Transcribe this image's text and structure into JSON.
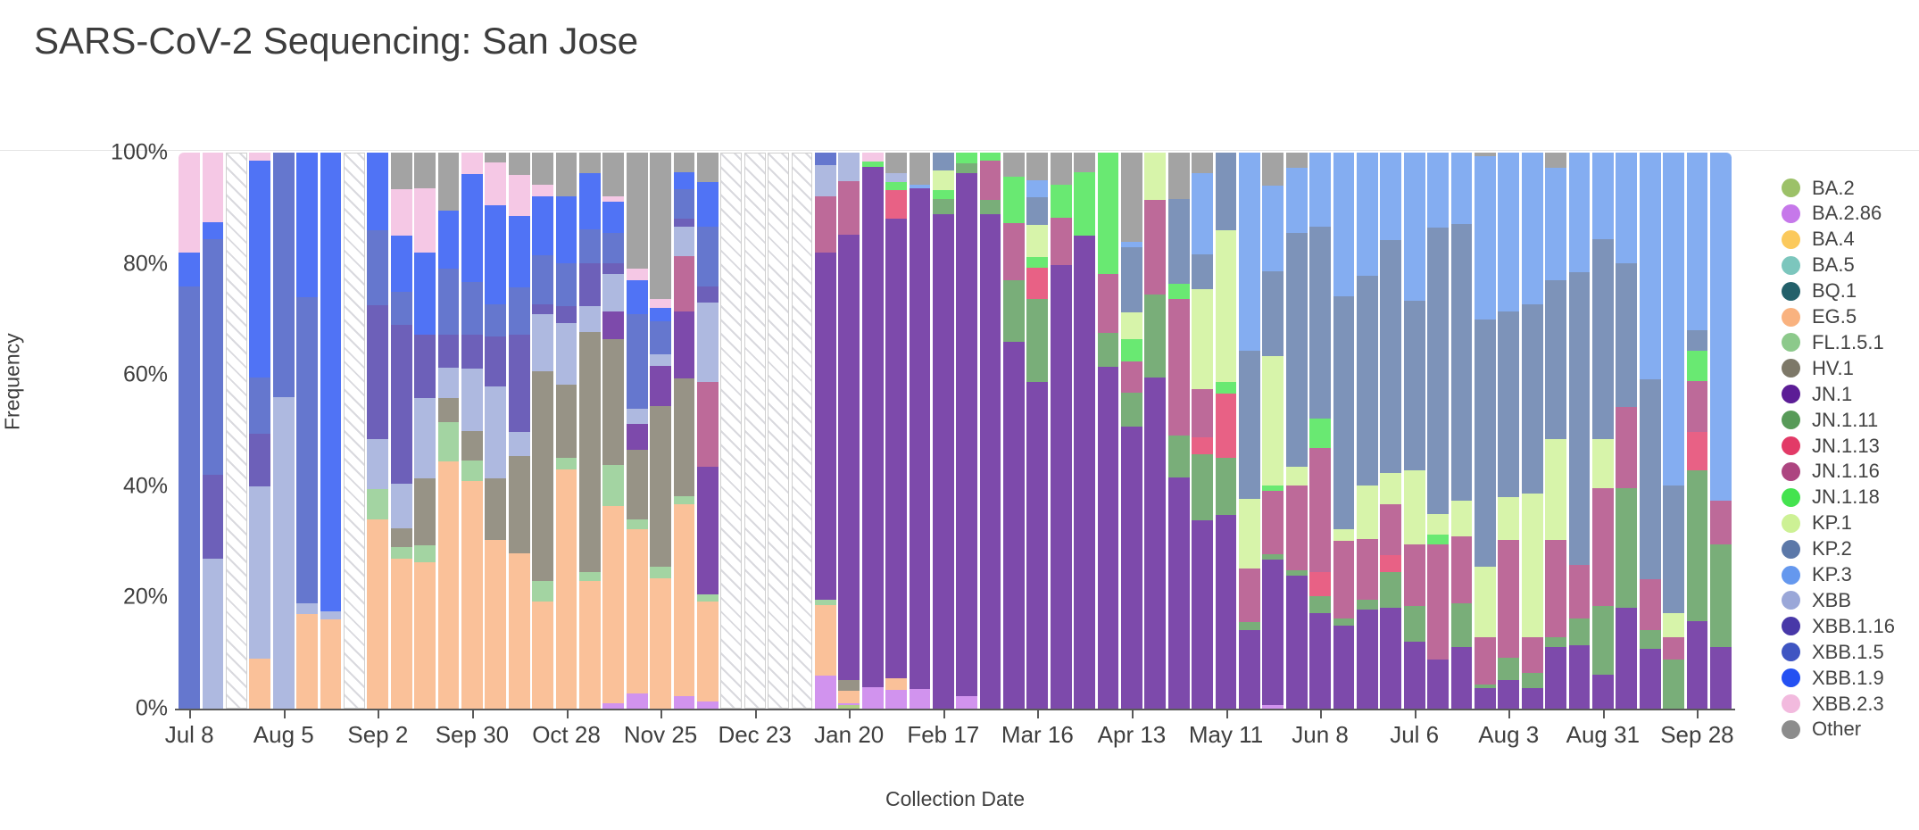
{
  "title": "SARS-CoV-2 Sequencing: San Jose",
  "axes": {
    "y_title": "Frequency",
    "x_title": "Collection Date",
    "y_ticks": [
      "0%",
      "20%",
      "40%",
      "60%",
      "80%",
      "100%"
    ],
    "x_tick_every_n_bars": 4,
    "x_tick_labels": [
      "Jul 8",
      "Aug 5",
      "Sep 2",
      "Sep 30",
      "Oct 28",
      "Nov 25",
      "Dec 23",
      "Jan 20",
      "Feb 17",
      "Mar 16",
      "Apr 13",
      "May 11",
      "Jun 8",
      "Jul 6",
      "Aug 3",
      "Aug 31",
      "Sep 28"
    ]
  },
  "legend": [
    {
      "label": "BA.2",
      "color": "#9cc168"
    },
    {
      "label": "BA.2.86",
      "color": "#c678ea"
    },
    {
      "label": "BA.4",
      "color": "#fbc95c"
    },
    {
      "label": "BA.5",
      "color": "#7cc6bd"
    },
    {
      "label": "BQ.1",
      "color": "#23606a"
    },
    {
      "label": "EG.5",
      "color": "#f9b27f"
    },
    {
      "label": "FL.1.5.1",
      "color": "#8cc98b"
    },
    {
      "label": "HV.1",
      "color": "#7d7868"
    },
    {
      "label": "JN.1",
      "color": "#5c1d96"
    },
    {
      "label": "JN.1.11",
      "color": "#579a58"
    },
    {
      "label": "JN.1.13",
      "color": "#e23a67"
    },
    {
      "label": "JN.1.16",
      "color": "#ad4580"
    },
    {
      "label": "JN.1.18",
      "color": "#44e34f"
    },
    {
      "label": "KP.1",
      "color": "#cdf195"
    },
    {
      "label": "KP.2",
      "color": "#5c78a8"
    },
    {
      "label": "KP.3",
      "color": "#6598ee"
    },
    {
      "label": "XBB",
      "color": "#9aa7d8"
    },
    {
      "label": "XBB.1.16",
      "color": "#4838a8"
    },
    {
      "label": "XBB.1.5",
      "color": "#3f55c2"
    },
    {
      "label": "XBB.1.9",
      "color": "#2450f2"
    },
    {
      "label": "XBB.2.3",
      "color": "#f2bade"
    },
    {
      "label": "Other",
      "color": "#8c8c8c"
    }
  ],
  "chart_data": {
    "type": "bar",
    "stacked": true,
    "stack_order_bottom_to_top": [
      "BA.2",
      "BA.2.86",
      "BA.4",
      "BA.5",
      "BQ.1",
      "EG.5",
      "FL.1.5.1",
      "HV.1",
      "JN.1",
      "JN.1.11",
      "JN.1.13",
      "JN.1.16",
      "JN.1.18",
      "KP.1",
      "KP.2",
      "KP.3",
      "XBB",
      "XBB.1.16",
      "XBB.1.5",
      "XBB.1.9",
      "XBB.2.3",
      "Other"
    ],
    "title": "SARS-CoV-2 Sequencing: San Jose",
    "xlabel": "Collection Date",
    "ylabel": "Frequency",
    "ylim": [
      0,
      100
    ],
    "y_unit": "percent",
    "no_data_weeks": [
      "2023-07-22",
      "2023-08-26",
      "2023-12-16",
      "2023-12-23",
      "2023-12-30",
      "2024-01-06"
    ],
    "bars": [
      {
        "date": "2023-07-08",
        "segments": {
          "XBB.1.5": 76,
          "XBB.1.9": 6,
          "XBB.2.3": 18
        }
      },
      {
        "date": "2023-07-15",
        "segments": {
          "XBB": 27,
          "XBB.1.16": 15,
          "XBB.1.5": 42.5,
          "XBB.1.9": 3,
          "XBB.2.3": 12.5
        }
      },
      {
        "date": "2023-07-22",
        "segments": null
      },
      {
        "date": "2023-07-29",
        "segments": {
          "EG.5": 9,
          "XBB": 31,
          "XBB.1.16": 9.5,
          "XBB.1.5": 10,
          "XBB.1.9": 39,
          "XBB.2.3": 1.5
        }
      },
      {
        "date": "2023-08-05",
        "segments": {
          "XBB": 56,
          "XBB.1.5": 44
        }
      },
      {
        "date": "2023-08-12",
        "segments": {
          "EG.5": 17,
          "XBB": 2,
          "XBB.1.5": 55,
          "XBB.1.9": 26
        }
      },
      {
        "date": "2023-08-19",
        "segments": {
          "EG.5": 16,
          "XBB": 1.5,
          "XBB.1.9": 82.5
        }
      },
      {
        "date": "2023-08-26",
        "segments": null
      },
      {
        "date": "2023-09-02",
        "segments": {
          "FL.1.5.1": 5.5,
          "EG.5": 34,
          "XBB": 9,
          "XBB.1.16": 24,
          "XBB.1.5": 13.5,
          "XBB.1.9": 14
        }
      },
      {
        "date": "2023-09-09",
        "segments": {
          "FL.1.5.1": 2,
          "EG.5": 27,
          "HV.1": 3.5,
          "XBB": 8,
          "XBB.1.16": 28.5,
          "XBB.1.5": 6,
          "XBB.1.9": 10,
          "XBB.2.3": 8.5,
          "Other": 6.5
        }
      },
      {
        "date": "2023-09-16",
        "segments": {
          "FL.1.5.1": 3,
          "EG.5": 26.3,
          "HV.1": 12.1,
          "XBB": 14.5,
          "XBB.1.16": 11.4,
          "XBB.1.9": 14.8,
          "XBB.2.3": 11.5,
          "Other": 6.4
        }
      },
      {
        "date": "2023-09-23",
        "segments": {
          "EG.5": 44.4,
          "FL.1.5.1": 7.1,
          "HV.1": 4.4,
          "XBB": 5.4,
          "XBB.1.16": 6,
          "XBB.1.5": 11.8,
          "XBB.1.9": 10.5,
          "Other": 10.4
        }
      },
      {
        "date": "2023-09-30",
        "segments": {
          "EG.5": 41,
          "FL.1.5.1": 3.7,
          "HV.1": 5.3,
          "XBB": 11.2,
          "XBB.1.16": 6,
          "XBB.1.5": 9.5,
          "XBB.1.9": 19.5,
          "XBB.2.3": 3.8
        }
      },
      {
        "date": "2023-10-07",
        "segments": {
          "EG.5": 30.3,
          "HV.1": 11.1,
          "XBB": 16.5,
          "XBB.1.16": 9.1,
          "XBB.1.5": 5.7,
          "XBB.1.9": 17.9,
          "XBB.2.3": 7.7,
          "Other": 1.7
        }
      },
      {
        "date": "2023-10-14",
        "segments": {
          "EG.5": 27.9,
          "HV.1": 17.6,
          "XBB": 4.3,
          "XBB.1.16": 17.5,
          "XBB.1.5": 8.5,
          "XBB.1.9": 12.8,
          "XBB.2.3": 7.4,
          "Other": 4
        }
      },
      {
        "date": "2023-10-21",
        "segments": {
          "EG.5": 19.2,
          "FL.1.5.1": 3.7,
          "HV.1": 37.7,
          "XBB": 10.4,
          "XBB.1.16": 1.7,
          "XBB.1.5": 8.8,
          "XBB.1.9": 10.7,
          "XBB.2.3": 2.1,
          "Other": 5.7
        }
      },
      {
        "date": "2023-10-28",
        "segments": {
          "EG.5": 43.1,
          "FL.1.5.1": 2,
          "HV.1": 13.1,
          "XBB": 11.2,
          "XBB.1.16": 3,
          "XBB.1.5": 7.7,
          "XBB.1.9": 12.1,
          "Other": 7.8
        }
      },
      {
        "date": "2023-11-04",
        "segments": {
          "EG.5": 22.9,
          "FL.1.5.1": 1.7,
          "HV.1": 43.1,
          "XBB": 4.7,
          "XBB.1.16": 7.7,
          "XBB.1.5": 6.1,
          "XBB.1.9": 10.1,
          "Other": 3.7
        }
      },
      {
        "date": "2023-11-11",
        "segments": {
          "BA.2.86": 1,
          "EG.5": 35.5,
          "FL.1.5.1": 7.4,
          "HV.1": 22.5,
          "JN.1": 5,
          "XBB": 6.7,
          "XBB.1.16": 2,
          "XBB.1.5": 5.4,
          "XBB.1.9": 5.7,
          "XBB.2.3": 1,
          "Other": 7.8
        }
      },
      {
        "date": "2023-11-18",
        "segments": {
          "BA.2.86": 2.7,
          "EG.5": 29.6,
          "FL.1.5.1": 1.7,
          "HV.1": 12.5,
          "JN.1": 4.7,
          "XBB": 2.7,
          "XBB.1.5": 17.1,
          "XBB.1.9": 6.1,
          "XBB.2.3": 2,
          "Other": 20.9
        }
      },
      {
        "date": "2023-11-25",
        "segments": {
          "FL.1.5.1": 2,
          "EG.5": 23.5,
          "HV.1": 28.9,
          "JN.1": 7.3,
          "XBB": 2,
          "XBB.1.5": 6,
          "XBB.1.9": 2.3,
          "XBB.2.3": 1.7,
          "Other": 26.3
        }
      },
      {
        "date": "2023-12-02",
        "segments": {
          "BA.2.86": 2.3,
          "EG.5": 34.5,
          "FL.1.5.1": 1.4,
          "HV.1": 21.2,
          "JN.1": 12,
          "JN.1.16": 10,
          "XBB": 5.3,
          "XBB.1.16": 1.4,
          "XBB.1.5": 5.3,
          "XBB.1.9": 3,
          "Other": 3.6
        }
      },
      {
        "date": "2023-12-09",
        "segments": {
          "BA.2.86": 1.3,
          "EG.5": 17.9,
          "FL.1.5.1": 1.3,
          "JN.1": 23,
          "JN.1.16": 15.2,
          "XBB": 14.3,
          "XBB.1.16": 3,
          "XBB.1.5": 10.7,
          "XBB.1.9": 8,
          "Other": 5.3
        }
      },
      {
        "date": "2023-12-16",
        "segments": null
      },
      {
        "date": "2023-12-23",
        "segments": null
      },
      {
        "date": "2023-12-30",
        "segments": null
      },
      {
        "date": "2024-01-06",
        "segments": null
      },
      {
        "date": "2024-01-13",
        "segments": {
          "BA.2.86": 6,
          "EG.5": 12.6,
          "FL.1.5.1": 1,
          "JN.1": 62.4,
          "JN.1.16": 10.2,
          "XBB": 5.6,
          "XBB.1.5": 2.2
        }
      },
      {
        "date": "2024-01-20",
        "segments": {
          "BA.2": 0.6,
          "BA.2.86": 0.4,
          "EG.5": 2.2,
          "HV.1": 1.9,
          "JN.1": 80.1,
          "JN.1.16": 9.6,
          "XBB": 5.2
        }
      },
      {
        "date": "2024-01-27",
        "segments": {
          "BA.2.86": 3.9,
          "JN.1": 93.5,
          "JN.1.18": 1,
          "XBB.2.3": 1.6
        }
      },
      {
        "date": "2024-02-03",
        "segments": {
          "BA.2.86": 3.3,
          "EG.5": 2.2,
          "JN.1": 82.7,
          "JN.1.13": 5.1,
          "JN.1.18": 1.4,
          "XBB": 1.6,
          "Other": 3.7
        }
      },
      {
        "date": "2024-02-10",
        "segments": {
          "BA.2.86": 3.6,
          "JN.1": 90,
          "KP.3": 0.7,
          "Other": 5.7
        }
      },
      {
        "date": "2024-02-17",
        "segments": {
          "JN.1": 89,
          "JN.1.11": 2.7,
          "JN.1.18": 1.5,
          "KP.1": 3.6,
          "KP.2": 3.2
        }
      },
      {
        "date": "2024-02-24",
        "segments": {
          "BA.2.86": 2.3,
          "JN.1": 94,
          "JN.1.11": 1.7,
          "JN.1.18": 2
        }
      },
      {
        "date": "2024-03-02",
        "segments": {
          "JN.1": 89,
          "JN.1.11": 2.5,
          "JN.1.16": 7,
          "JN.1.18": 1.5
        }
      },
      {
        "date": "2024-03-09",
        "segments": {
          "JN.1": 66,
          "JN.1.11": 11,
          "JN.1.16": 10.3,
          "JN.1.18": 8.4,
          "Other": 4.3
        }
      },
      {
        "date": "2024-03-16",
        "segments": {
          "JN.1": 58.7,
          "JN.1.11": 15,
          "JN.1.13": 5.6,
          "JN.1.18": 2,
          "KP.1": 5.7,
          "KP.2": 5,
          "KP.3": 3,
          "Other": 5
        }
      },
      {
        "date": "2024-03-23",
        "segments": {
          "JN.1": 79.7,
          "JN.1.16": 8.6,
          "JN.1.18": 6,
          "Other": 5.7
        }
      },
      {
        "date": "2024-03-30",
        "segments": {
          "JN.1": 85,
          "JN.1.18": 11.4,
          "Other": 3.6
        }
      },
      {
        "date": "2024-04-06",
        "segments": {
          "JN.1": 61.5,
          "JN.1.11": 6,
          "JN.1.16": 10.7,
          "JN.1.18": 21.8
        }
      },
      {
        "date": "2024-04-13",
        "segments": {
          "JN.1": 50.8,
          "JN.1.11": 6,
          "JN.1.16": 5.7,
          "JN.1.18": 4,
          "KP.1": 4.7,
          "KP.2": 11.8,
          "KP.3": 1,
          "Other": 16
        }
      },
      {
        "date": "2024-04-20",
        "segments": {
          "JN.1": 59.5,
          "JN.1.11": 15,
          "JN.1.16": 17,
          "KP.1": 8.5
        }
      },
      {
        "date": "2024-04-27",
        "segments": {
          "JN.1": 41.5,
          "JN.1.11": 7.6,
          "JN.1.16": 24.6,
          "JN.1.18": 2.7,
          "KP.2": 15.3,
          "Other": 8.3
        }
      },
      {
        "date": "2024-05-04",
        "segments": {
          "JN.1": 33.9,
          "JN.1.11": 11.9,
          "JN.1.13": 3,
          "JN.1.16": 8.7,
          "KP.1": 17.9,
          "KP.2": 6.3,
          "KP.3": 14.6,
          "Other": 3.7
        }
      },
      {
        "date": "2024-05-11",
        "segments": {
          "JN.1": 34.8,
          "JN.1.11": 10.3,
          "JN.1.13": 11.6,
          "JN.1.18": 2,
          "KP.1": 27.3,
          "KP.2": 14
        }
      },
      {
        "date": "2024-05-18",
        "segments": {
          "JN.1": 14.2,
          "JN.1.11": 1.4,
          "JN.1.16": 9.6,
          "KP.1": 12.6,
          "KP.2": 26.6,
          "KP.3": 35.6
        }
      },
      {
        "date": "2024-05-25",
        "segments": {
          "BA.2.86": 0.6,
          "JN.1": 26.2,
          "JN.1.11": 1,
          "JN.1.16": 11.3,
          "JN.1.18": 1,
          "KP.1": 23.3,
          "KP.2": 15.3,
          "KP.3": 15.3,
          "Other": 6
        }
      },
      {
        "date": "2024-06-01",
        "segments": {
          "JN.1": 23.9,
          "JN.1.11": 1,
          "JN.1.16": 15.2,
          "KP.1": 3.4,
          "KP.2": 42.1,
          "KP.3": 11.7,
          "Other": 2.7
        }
      },
      {
        "date": "2024-06-08",
        "segments": {
          "JN.1": 17.2,
          "JN.1.11": 3,
          "JN.1.13": 4.3,
          "JN.1.16": 22.3,
          "JN.1.18": 5.4,
          "KP.2": 34.5,
          "KP.3": 13.3
        }
      },
      {
        "date": "2024-06-15",
        "segments": {
          "JN.1": 14.9,
          "JN.1.11": 1.3,
          "JN.1.16": 14,
          "KP.1": 2,
          "KP.2": 41.9,
          "KP.3": 25.9
        }
      },
      {
        "date": "2024-06-22",
        "segments": {
          "JN.1": 17.9,
          "JN.1.11": 1.7,
          "JN.1.16": 11,
          "KP.1": 9.6,
          "KP.2": 37.7,
          "KP.3": 22.2
        }
      },
      {
        "date": "2024-06-29",
        "segments": {
          "JN.1": 18.2,
          "JN.1.11": 6.4,
          "JN.1.13": 3,
          "JN.1.16": 9.1,
          "KP.1": 5.7,
          "KP.2": 41.8,
          "KP.3": 15.8
        }
      },
      {
        "date": "2024-07-06",
        "segments": {
          "JN.1": 12.1,
          "JN.1.11": 6.4,
          "JN.1.16": 11.1,
          "KP.1": 13.2,
          "KP.2": 30.6,
          "KP.3": 26.6
        }
      },
      {
        "date": "2024-07-13",
        "segments": {
          "JN.1": 8.8,
          "JN.1.16": 20.8,
          "JN.1.18": 1.7,
          "KP.1": 3.7,
          "KP.2": 51.5,
          "KP.3": 13.5
        }
      },
      {
        "date": "2024-07-20",
        "segments": {
          "JN.1": 11.1,
          "JN.1.11": 7.8,
          "JN.1.16": 12.1,
          "KP.1": 6.4,
          "KP.2": 49.8,
          "KP.3": 12.8
        }
      },
      {
        "date": "2024-07-27",
        "segments": {
          "JN.1": 3.7,
          "JN.1.11": 0.7,
          "JN.1.16": 8.4,
          "KP.1": 12.8,
          "KP.2": 44.4,
          "KP.3": 29.3,
          "Other": 0.7
        }
      },
      {
        "date": "2024-08-03",
        "segments": {
          "JN.1": 5.1,
          "JN.1.11": 4,
          "JN.1.16": 21.2,
          "KP.1": 7.7,
          "KP.2": 33.4,
          "KP.3": 28.6
        }
      },
      {
        "date": "2024-08-10",
        "segments": {
          "JN.1": 3.7,
          "JN.1.11": 2.7,
          "JN.1.16": 6.4,
          "KP.1": 25.9,
          "KP.2": 34,
          "KP.3": 27.3
        }
      },
      {
        "date": "2024-08-17",
        "segments": {
          "JN.1": 11.1,
          "JN.1.11": 1.7,
          "JN.1.16": 17.5,
          "KP.1": 18.2,
          "KP.2": 28.6,
          "KP.3": 20.2,
          "Other": 2.7
        }
      },
      {
        "date": "2024-08-24",
        "segments": {
          "JN.1": 11.4,
          "JN.1.11": 4.8,
          "JN.1.16": 9.7,
          "KP.2": 52.6,
          "KP.3": 21.5
        }
      },
      {
        "date": "2024-08-31",
        "segments": {
          "JN.1": 6.1,
          "JN.1.11": 12.4,
          "JN.1.16": 21.2,
          "KP.1": 8.8,
          "KP.2": 36,
          "KP.3": 15.5
        }
      },
      {
        "date": "2024-09-07",
        "segments": {
          "JN.1": 18.2,
          "JN.1.11": 21.5,
          "JN.1.16": 14.5,
          "KP.2": 25.9,
          "KP.3": 19.9
        }
      },
      {
        "date": "2024-09-14",
        "segments": {
          "JN.1": 10.8,
          "JN.1.11": 3.3,
          "JN.1.16": 9.1,
          "KP.2": 36.1,
          "KP.3": 40.7
        }
      },
      {
        "date": "2024-09-21",
        "segments": {
          "JN.1.11": 8.8,
          "JN.1.16": 4,
          "KP.1": 4.4,
          "KP.2": 22.9,
          "KP.3": 59.9
        }
      },
      {
        "date": "2024-09-28",
        "segments": {
          "JN.1": 15.8,
          "JN.1.11": 27,
          "JN.1.13": 7,
          "JN.1.16": 9.1,
          "JN.1.18": 5.4,
          "KP.2": 3.7,
          "KP.3": 32
        }
      },
      {
        "date": "2024-10-05",
        "segments": {
          "JN.1": 11.1,
          "JN.1.11": 18.5,
          "JN.1.16": 7.8,
          "KP.3": 62.6
        }
      }
    ]
  }
}
